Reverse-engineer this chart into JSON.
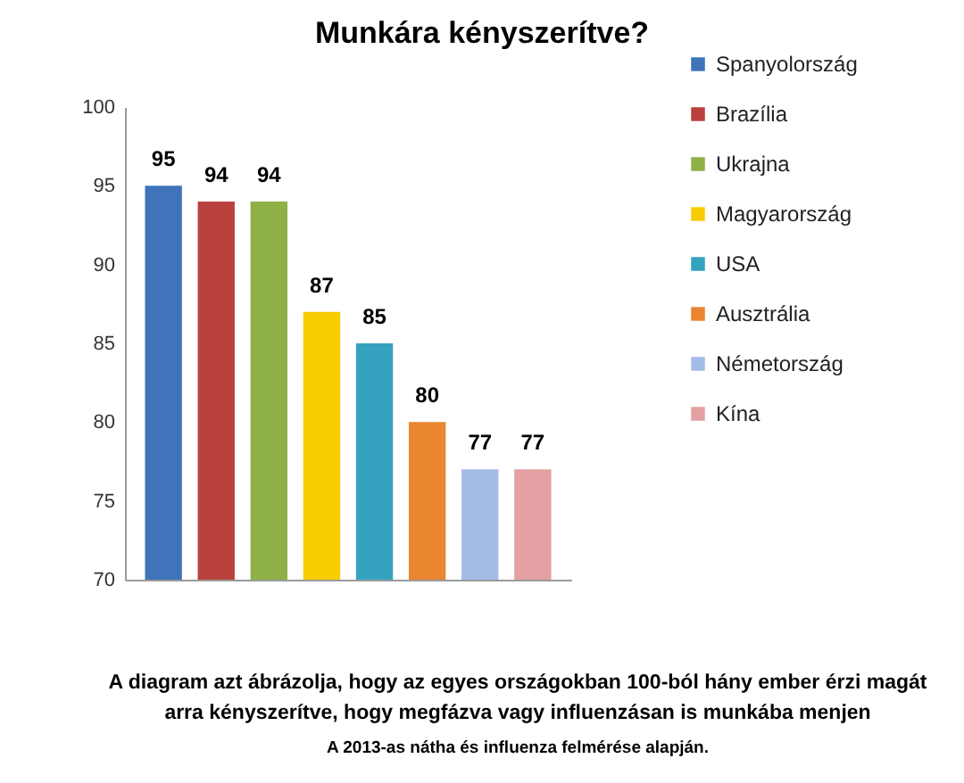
{
  "chart_data": {
    "type": "bar",
    "title": "Munkára kényszerítve?",
    "categories": [
      null
    ],
    "series": [
      {
        "name": "Spanyolország",
        "color": "#3f74ba",
        "values": [
          95
        ]
      },
      {
        "name": "Brazília",
        "color": "#b9423e",
        "values": [
          94
        ]
      },
      {
        "name": "Ukrajna",
        "color": "#8fb046",
        "values": [
          94
        ]
      },
      {
        "name": "Magyarország",
        "color": "#f7cc00",
        "values": [
          87
        ]
      },
      {
        "name": "USA",
        "color": "#35a2bf",
        "values": [
          85
        ]
      },
      {
        "name": "Ausztrália",
        "color": "#ea8530",
        "values": [
          80
        ]
      },
      {
        "name": "Németország",
        "color": "#a3bce6",
        "values": [
          77
        ]
      },
      {
        "name": "Kína",
        "color": "#e3a1a3",
        "values": [
          77
        ]
      }
    ],
    "ylim": [
      70,
      100
    ],
    "yticks": [
      70,
      75,
      80,
      85,
      90,
      95,
      100
    ],
    "grid": false,
    "legend": "right",
    "tick_labels": "y",
    "data_labels": true,
    "annotations": [
      "A diagram azt ábrázolja, hogy az egyes országokban 100-ból hány ember érzi magát arra kényszerítve, hogy megfázva vagy influenzásan is munkába menjen",
      "A 2013-as nátha és influenza felmérése alapján."
    ]
  }
}
